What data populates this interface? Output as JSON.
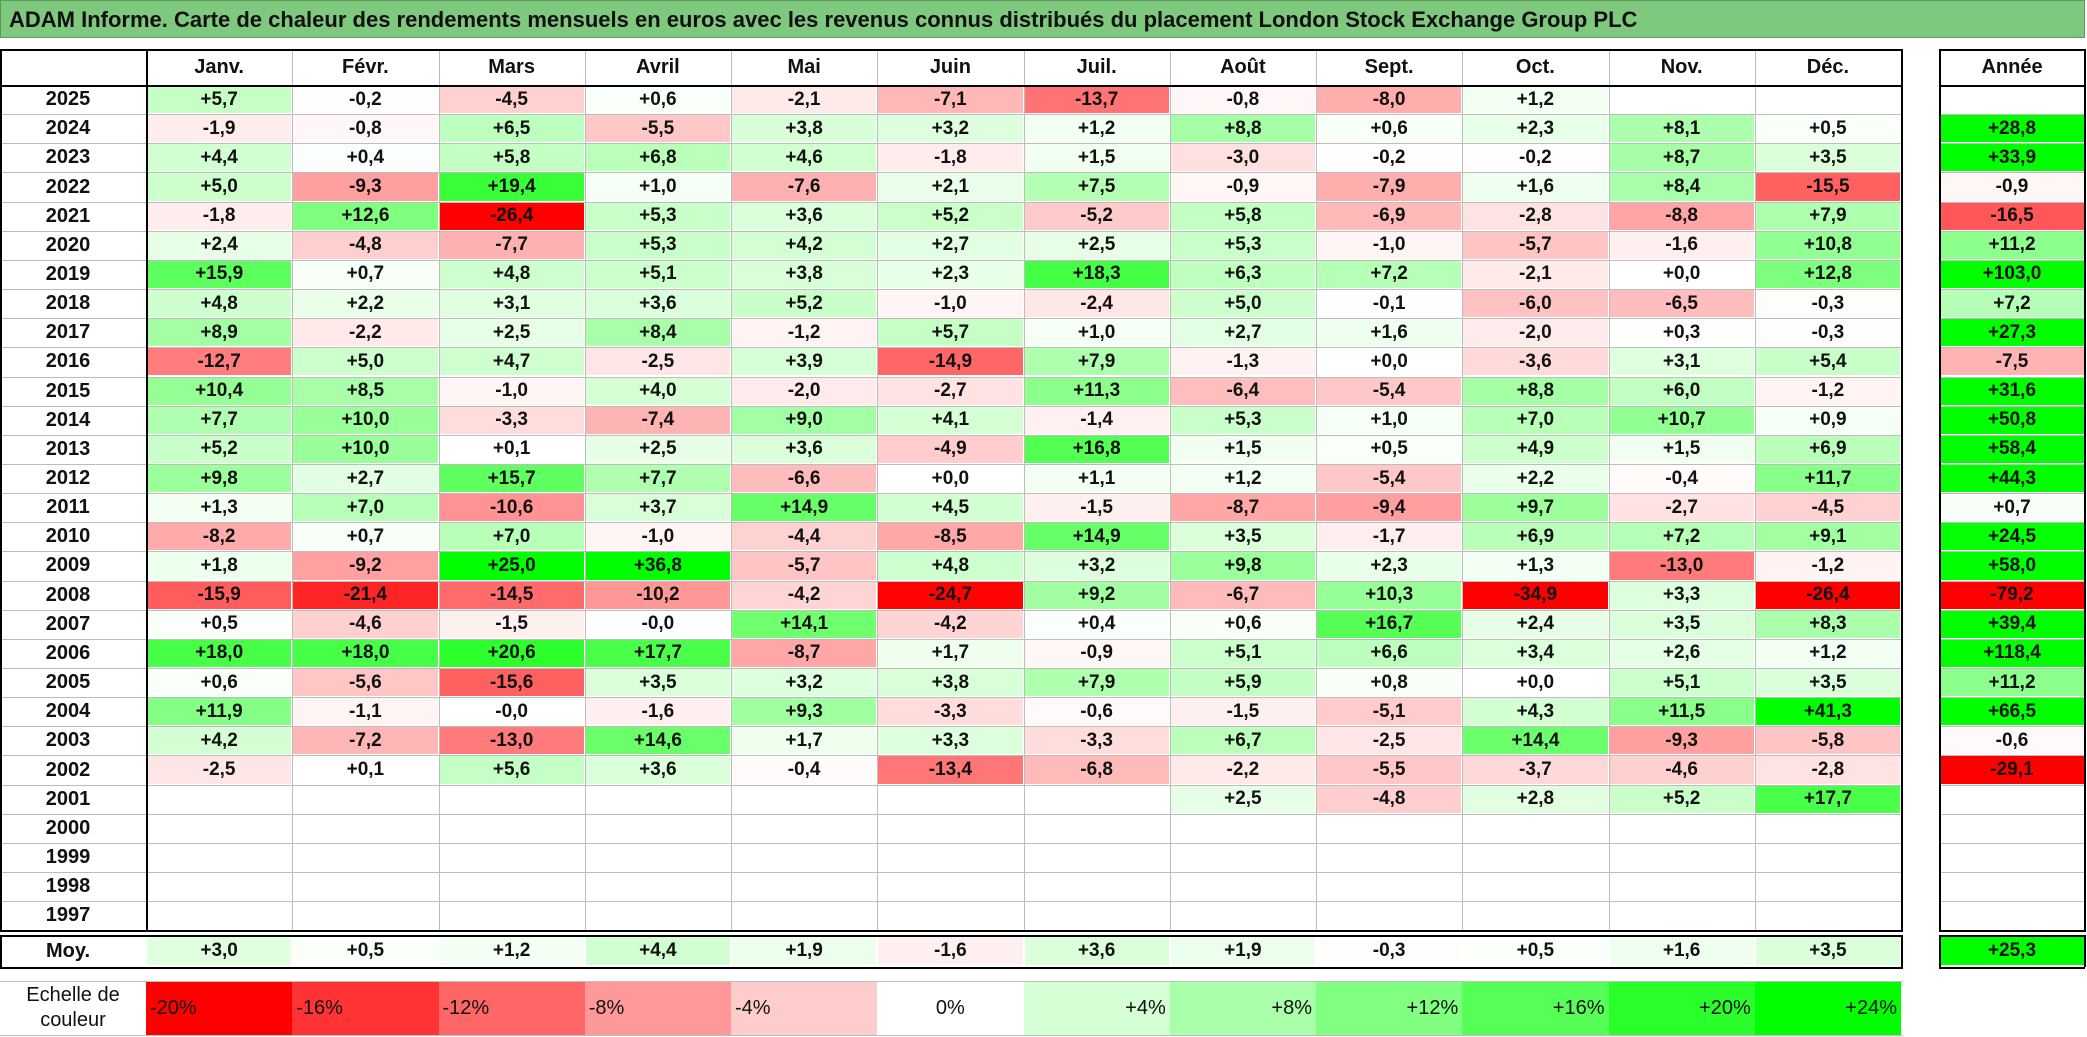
{
  "title": "ADAM Informe. Carte de chaleur des rendements mensuels en euros avec les revenus connus distribués du placement London Stock Exchange Group PLC",
  "colors": {
    "neg_max": "#ff0000",
    "pos_max": "#00ff00",
    "neutral": "#ffffff",
    "title_bg": "#7fc97f"
  },
  "chart_data": {
    "type": "heatmap",
    "title": "ADAM Informe. Carte de chaleur des rendements mensuels en euros avec les revenus connus distribués du placement London Stock Exchange Group PLC",
    "months": [
      "Janv.",
      "Févr.",
      "Mars",
      "Avril",
      "Mai",
      "Juin",
      "Juil.",
      "Août",
      "Sept.",
      "Oct.",
      "Nov.",
      "Déc."
    ],
    "year_header": "Année",
    "rows": [
      {
        "year": "2025",
        "values": [
          "+5,7",
          "-0,2",
          "-4,5",
          "+0,6",
          "-2,1",
          "-7,1",
          "-13,7",
          "-0,8",
          "-8,0",
          "+1,2",
          "",
          ""
        ],
        "annual": ""
      },
      {
        "year": "2024",
        "values": [
          "-1,9",
          "-0,8",
          "+6,5",
          "-5,5",
          "+3,8",
          "+3,2",
          "+1,2",
          "+8,8",
          "+0,6",
          "+2,3",
          "+8,1",
          "+0,5"
        ],
        "annual": "+28,8"
      },
      {
        "year": "2023",
        "values": [
          "+4,4",
          "+0,4",
          "+5,8",
          "+6,8",
          "+4,6",
          "-1,8",
          "+1,5",
          "-3,0",
          "-0,2",
          "-0,2",
          "+8,7",
          "+3,5"
        ],
        "annual": "+33,9"
      },
      {
        "year": "2022",
        "values": [
          "+5,0",
          "-9,3",
          "+19,4",
          "+1,0",
          "-7,6",
          "+2,1",
          "+7,5",
          "-0,9",
          "-7,9",
          "+1,6",
          "+8,4",
          "-15,5"
        ],
        "annual": "-0,9"
      },
      {
        "year": "2021",
        "values": [
          "-1,8",
          "+12,6",
          "-26,4",
          "+5,3",
          "+3,6",
          "+5,2",
          "-5,2",
          "+5,8",
          "-6,9",
          "-2,8",
          "-8,8",
          "+7,9"
        ],
        "annual": "-16,5"
      },
      {
        "year": "2020",
        "values": [
          "+2,4",
          "-4,8",
          "-7,7",
          "+5,3",
          "+4,2",
          "+2,7",
          "+2,5",
          "+5,3",
          "-1,0",
          "-5,7",
          "-1,6",
          "+10,8"
        ],
        "annual": "+11,2"
      },
      {
        "year": "2019",
        "values": [
          "+15,9",
          "+0,7",
          "+4,8",
          "+5,1",
          "+3,8",
          "+2,3",
          "+18,3",
          "+6,3",
          "+7,2",
          "-2,1",
          "+0,0",
          "+12,8"
        ],
        "annual": "+103,0"
      },
      {
        "year": "2018",
        "values": [
          "+4,8",
          "+2,2",
          "+3,1",
          "+3,6",
          "+5,2",
          "-1,0",
          "-2,4",
          "+5,0",
          "-0,1",
          "-6,0",
          "-6,5",
          "-0,3"
        ],
        "annual": "+7,2"
      },
      {
        "year": "2017",
        "values": [
          "+8,9",
          "-2,2",
          "+2,5",
          "+8,4",
          "-1,2",
          "+5,7",
          "+1,0",
          "+2,7",
          "+1,6",
          "-2,0",
          "+0,3",
          "-0,3"
        ],
        "annual": "+27,3"
      },
      {
        "year": "2016",
        "values": [
          "-12,7",
          "+5,0",
          "+4,7",
          "-2,5",
          "+3,9",
          "-14,9",
          "+7,9",
          "-1,3",
          "+0,0",
          "-3,6",
          "+3,1",
          "+5,4"
        ],
        "annual": "-7,5"
      },
      {
        "year": "2015",
        "values": [
          "+10,4",
          "+8,5",
          "-1,0",
          "+4,0",
          "-2,0",
          "-2,7",
          "+11,3",
          "-6,4",
          "-5,4",
          "+8,8",
          "+6,0",
          "-1,2"
        ],
        "annual": "+31,6"
      },
      {
        "year": "2014",
        "values": [
          "+7,7",
          "+10,0",
          "-3,3",
          "-7,4",
          "+9,0",
          "+4,1",
          "-1,4",
          "+5,3",
          "+1,0",
          "+7,0",
          "+10,7",
          "+0,9"
        ],
        "annual": "+50,8"
      },
      {
        "year": "2013",
        "values": [
          "+5,2",
          "+10,0",
          "+0,1",
          "+2,5",
          "+3,6",
          "-4,9",
          "+16,8",
          "+1,5",
          "+0,5",
          "+4,9",
          "+1,5",
          "+6,9"
        ],
        "annual": "+58,4"
      },
      {
        "year": "2012",
        "values": [
          "+9,8",
          "+2,7",
          "+15,7",
          "+7,7",
          "-6,6",
          "+0,0",
          "+1,1",
          "+1,2",
          "-5,4",
          "+2,2",
          "-0,4",
          "+11,7"
        ],
        "annual": "+44,3"
      },
      {
        "year": "2011",
        "values": [
          "+1,3",
          "+7,0",
          "-10,6",
          "+3,7",
          "+14,9",
          "+4,5",
          "-1,5",
          "-8,7",
          "-9,4",
          "+9,7",
          "-2,7",
          "-4,5"
        ],
        "annual": "+0,7"
      },
      {
        "year": "2010",
        "values": [
          "-8,2",
          "+0,7",
          "+7,0",
          "-1,0",
          "-4,4",
          "-8,5",
          "+14,9",
          "+3,5",
          "-1,7",
          "+6,9",
          "+7,2",
          "+9,1"
        ],
        "annual": "+24,5"
      },
      {
        "year": "2009",
        "values": [
          "+1,8",
          "-9,2",
          "+25,0",
          "+36,8",
          "-5,7",
          "+4,8",
          "+3,2",
          "+9,8",
          "+2,3",
          "+1,3",
          "-13,0",
          "-1,2"
        ],
        "annual": "+58,0"
      },
      {
        "year": "2008",
        "values": [
          "-15,9",
          "-21,4",
          "-14,5",
          "-10,2",
          "-4,2",
          "-24,7",
          "+9,2",
          "-6,7",
          "+10,3",
          "-34,9",
          "+3,3",
          "-26,4"
        ],
        "annual": "-79,2"
      },
      {
        "year": "2007",
        "values": [
          "+0,5",
          "-4,6",
          "-1,5",
          "-0,0",
          "+14,1",
          "-4,2",
          "+0,4",
          "+0,6",
          "+16,7",
          "+2,4",
          "+3,5",
          "+8,3"
        ],
        "annual": "+39,4"
      },
      {
        "year": "2006",
        "values": [
          "+18,0",
          "+18,0",
          "+20,6",
          "+17,7",
          "-8,7",
          "+1,7",
          "-0,9",
          "+5,1",
          "+6,6",
          "+3,4",
          "+2,6",
          "+1,2"
        ],
        "annual": "+118,4"
      },
      {
        "year": "2005",
        "values": [
          "+0,6",
          "-5,6",
          "-15,6",
          "+3,5",
          "+3,2",
          "+3,8",
          "+7,9",
          "+5,9",
          "+0,8",
          "+0,0",
          "+5,1",
          "+3,5"
        ],
        "annual": "+11,2"
      },
      {
        "year": "2004",
        "values": [
          "+11,9",
          "-1,1",
          "-0,0",
          "-1,6",
          "+9,3",
          "-3,3",
          "-0,6",
          "-1,5",
          "-5,1",
          "+4,3",
          "+11,5",
          "+41,3"
        ],
        "annual": "+66,5"
      },
      {
        "year": "2003",
        "values": [
          "+4,2",
          "-7,2",
          "-13,0",
          "+14,6",
          "+1,7",
          "+3,3",
          "-3,3",
          "+6,7",
          "-2,5",
          "+14,4",
          "-9,3",
          "-5,8"
        ],
        "annual": "-0,6"
      },
      {
        "year": "2002",
        "values": [
          "-2,5",
          "+0,1",
          "+5,6",
          "+3,6",
          "-0,4",
          "-13,4",
          "-6,8",
          "-2,2",
          "-5,5",
          "-3,7",
          "-4,6",
          "-2,8"
        ],
        "annual": "-29,1"
      },
      {
        "year": "2001",
        "values": [
          "",
          "",
          "",
          "",
          "",
          "",
          "",
          "+2,5",
          "-4,8",
          "+2,8",
          "+5,2",
          "+17,7"
        ],
        "annual": ""
      },
      {
        "year": "2000",
        "values": [
          "",
          "",
          "",
          "",
          "",
          "",
          "",
          "",
          "",
          "",
          "",
          ""
        ],
        "annual": ""
      },
      {
        "year": "1999",
        "values": [
          "",
          "",
          "",
          "",
          "",
          "",
          "",
          "",
          "",
          "",
          "",
          ""
        ],
        "annual": ""
      },
      {
        "year": "1998",
        "values": [
          "",
          "",
          "",
          "",
          "",
          "",
          "",
          "",
          "",
          "",
          "",
          ""
        ],
        "annual": ""
      },
      {
        "year": "1997",
        "values": [
          "",
          "",
          "",
          "",
          "",
          "",
          "",
          "",
          "",
          "",
          "",
          ""
        ],
        "annual": ""
      }
    ],
    "average": {
      "label": "Moy.",
      "values": [
        "+3,0",
        "+0,5",
        "+1,2",
        "+4,4",
        "+1,9",
        "-1,6",
        "+3,6",
        "+1,9",
        "-0,3",
        "+0,5",
        "+1,6",
        "+3,5"
      ],
      "annual": "+25,3"
    },
    "scale": {
      "label_line1": "Echelle de",
      "label_line2": "couleur",
      "steps": [
        "-20%",
        "-16%",
        "-12%",
        "-8%",
        "-4%",
        "0%",
        "+4%",
        "+8%",
        "+12%",
        "+16%",
        "+20%",
        "+24%"
      ],
      "values": [
        -20,
        -16,
        -12,
        -8,
        -4,
        0,
        4,
        8,
        12,
        16,
        20,
        24
      ]
    }
  }
}
